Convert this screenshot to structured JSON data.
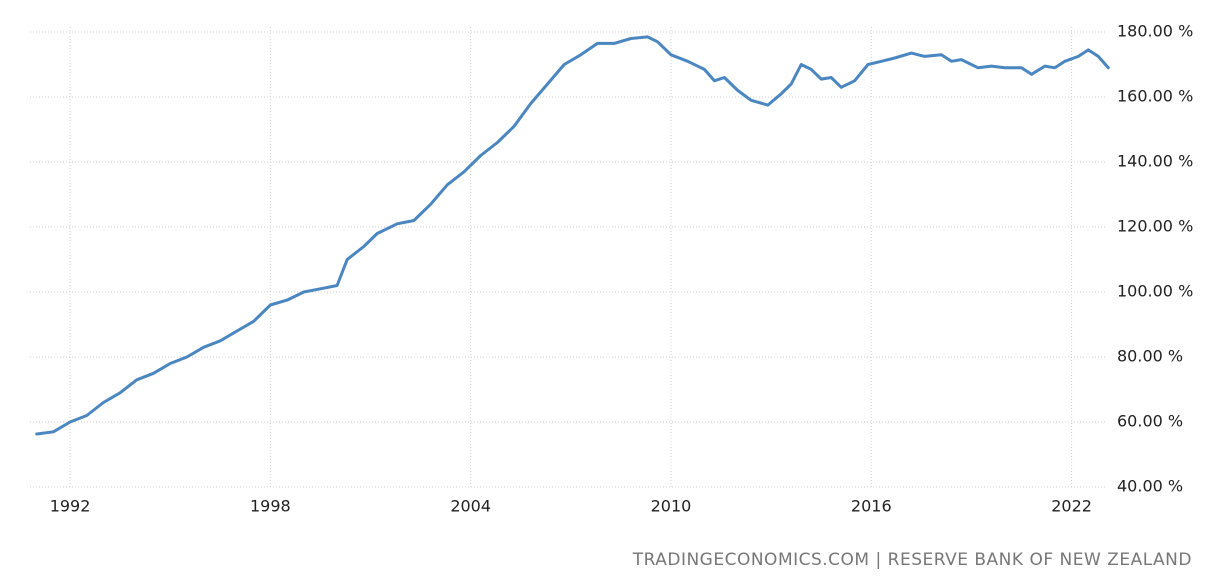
{
  "chart_data": {
    "type": "line",
    "source": "TRADINGECONOMICS.COM | RESERVE BANK OF NEW ZEALAND",
    "x": [
      1991.0,
      1991.5,
      1992.0,
      1992.5,
      1993.0,
      1993.5,
      1994.0,
      1994.5,
      1995.0,
      1995.5,
      1996.0,
      1996.5,
      1997.0,
      1997.5,
      1998.0,
      1998.5,
      1999.0,
      1999.5,
      2000.0,
      2000.3,
      2000.8,
      2001.2,
      2001.8,
      2002.3,
      2002.8,
      2003.3,
      2003.8,
      2004.3,
      2004.8,
      2005.3,
      2005.8,
      2006.3,
      2006.8,
      2007.3,
      2007.8,
      2008.3,
      2008.8,
      2009.3,
      2009.6,
      2010.0,
      2010.5,
      2011.0,
      2011.3,
      2011.6,
      2012.0,
      2012.4,
      2012.9,
      2013.3,
      2013.6,
      2013.9,
      2014.2,
      2014.5,
      2014.8,
      2015.1,
      2015.5,
      2015.9,
      2016.3,
      2016.7,
      2017.2,
      2017.6,
      2018.1,
      2018.4,
      2018.7,
      2019.2,
      2019.6,
      2020.0,
      2020.5,
      2020.8,
      2021.2,
      2021.5,
      2021.8,
      2022.2,
      2022.5,
      2022.8,
      2023.1
    ],
    "series": [
      {
        "color": "#4a86bf",
        "values": [
          56.3,
          57,
          60,
          62,
          66,
          69,
          73,
          75,
          78,
          80,
          83,
          85,
          88,
          91,
          96,
          97.5,
          100,
          101,
          102,
          110,
          114,
          118,
          121,
          122,
          127,
          133,
          137,
          142,
          146,
          151,
          158,
          164,
          170,
          173,
          176.5,
          176.5,
          178,
          178.5,
          177,
          173,
          171,
          168.5,
          165,
          166,
          162,
          159,
          157.5,
          161,
          164,
          170,
          168.5,
          165.5,
          166,
          163,
          165,
          170,
          171,
          172,
          173.5,
          172.5,
          173,
          171,
          171.5,
          169,
          169.5,
          169,
          169,
          167,
          169.5,
          169,
          171,
          172.5,
          174.5,
          172.5,
          169
        ]
      }
    ],
    "xlim": [
      1990.8,
      2023.3
    ],
    "xticks": [
      1992,
      1998,
      2004,
      2010,
      2016,
      2022
    ],
    "ylim": [
      40,
      180
    ],
    "yticks": [
      {
        "value": 40,
        "label": "40.00 %"
      },
      {
        "value": 60,
        "label": "60.00 %"
      },
      {
        "value": 80,
        "label": "80.00 %"
      },
      {
        "value": 100,
        "label": "100.00 %"
      },
      {
        "value": 120,
        "label": "120.00 %"
      },
      {
        "value": 140,
        "label": "140.00 %"
      },
      {
        "value": 160,
        "label": "160.00 %"
      },
      {
        "value": 180,
        "label": "180.00 %"
      }
    ],
    "grid": true
  }
}
